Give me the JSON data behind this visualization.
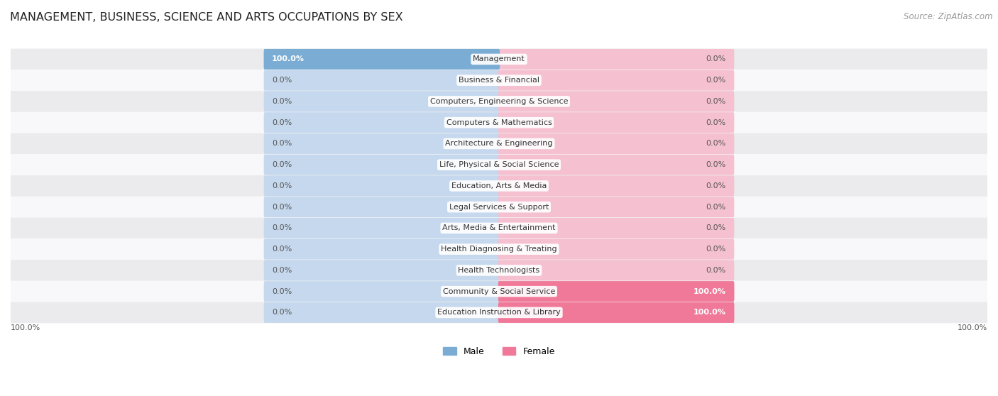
{
  "title": "MANAGEMENT, BUSINESS, SCIENCE AND ARTS OCCUPATIONS BY SEX",
  "source": "Source: ZipAtlas.com",
  "categories": [
    "Management",
    "Business & Financial",
    "Computers, Engineering & Science",
    "Computers & Mathematics",
    "Architecture & Engineering",
    "Life, Physical & Social Science",
    "Education, Arts & Media",
    "Legal Services & Support",
    "Arts, Media & Entertainment",
    "Health Diagnosing & Treating",
    "Health Technologists",
    "Community & Social Service",
    "Education Instruction & Library"
  ],
  "male_values": [
    100.0,
    0.0,
    0.0,
    0.0,
    0.0,
    0.0,
    0.0,
    0.0,
    0.0,
    0.0,
    0.0,
    0.0,
    0.0
  ],
  "female_values": [
    0.0,
    0.0,
    0.0,
    0.0,
    0.0,
    0.0,
    0.0,
    0.0,
    0.0,
    0.0,
    0.0,
    100.0,
    100.0
  ],
  "male_color": "#7badd4",
  "female_color": "#f07898",
  "male_bg_color": "#c5d8ed",
  "female_bg_color": "#f5c0d0",
  "row_bg_light": "#ebebee",
  "row_bg_white": "#f8f8fb",
  "label_color": "#444444",
  "title_color": "#333333",
  "value_label_color": "#555555",
  "value_label_white": "#ffffff"
}
